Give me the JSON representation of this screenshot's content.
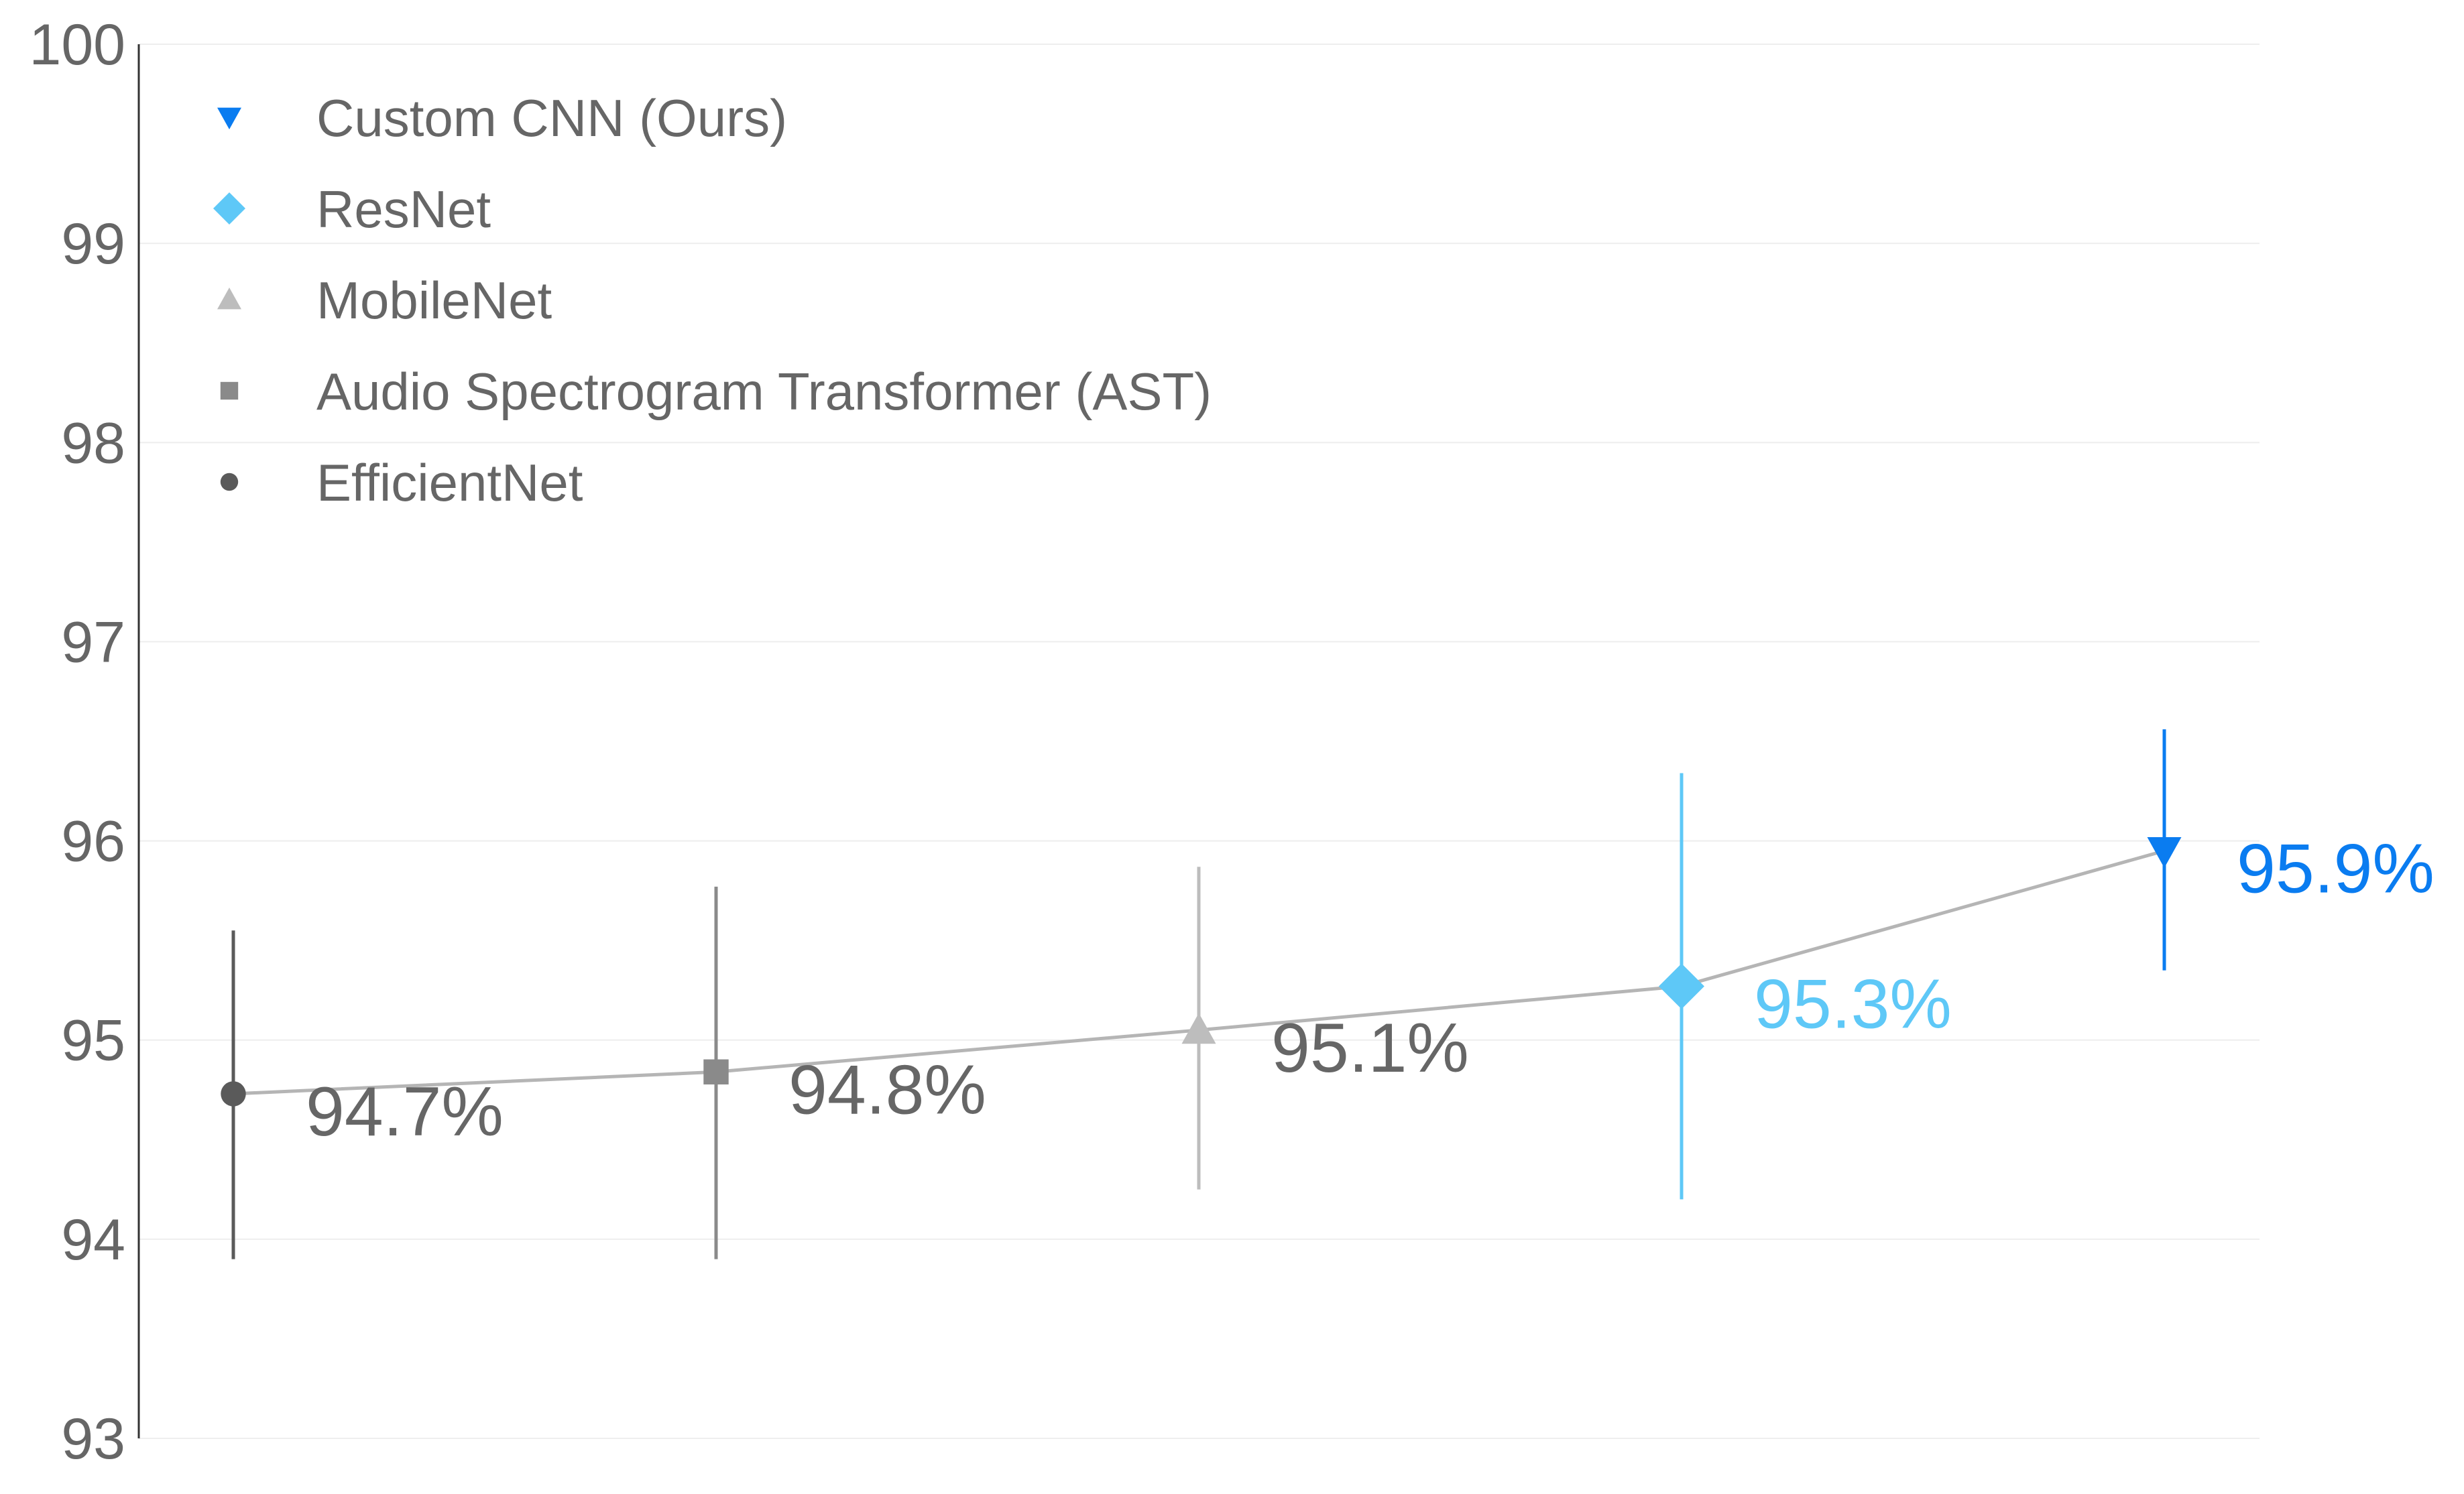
{
  "chart_data": {
    "type": "scatter",
    "title": "",
    "xlabel": "",
    "ylabel": "",
    "ylim": [
      93,
      100
    ],
    "yticks": [
      93,
      94,
      95,
      96,
      97,
      98,
      99,
      100
    ],
    "grid": true,
    "connecting_line_color": "#b5b5b5",
    "legend": {
      "placement": "top-left",
      "entries": [
        {
          "name": "Custom CNN (Ours)",
          "marker": "triangle-down",
          "color": "#0a7cf0"
        },
        {
          "name": "ResNet",
          "marker": "diamond",
          "color": "#5ec8f7"
        },
        {
          "name": "MobileNet",
          "marker": "triangle-up",
          "color": "#bdbdbd"
        },
        {
          "name": "Audio Spectrogram Transformer (AST)",
          "marker": "square",
          "color": "#8a8a8a"
        },
        {
          "name": "EfficientNet",
          "marker": "circle",
          "color": "#5a5a5a"
        }
      ]
    },
    "series": [
      {
        "name": "EfficientNet",
        "x": 1,
        "y": 94.73,
        "err_low": 93.9,
        "err_high": 95.55,
        "label": "94.7%",
        "marker": "circle",
        "color": "#5a5a5a",
        "label_color": "#666666"
      },
      {
        "name": "Audio Spectrogram Transformer (AST)",
        "x": 2,
        "y": 94.84,
        "err_low": 93.9,
        "err_high": 95.77,
        "label": "94.8%",
        "marker": "square",
        "color": "#8a8a8a",
        "label_color": "#666666"
      },
      {
        "name": "MobileNet",
        "x": 3,
        "y": 95.05,
        "err_low": 94.25,
        "err_high": 95.87,
        "label": "95.1%",
        "marker": "triangle-up",
        "color": "#bdbdbd",
        "label_color": "#666666"
      },
      {
        "name": "ResNet",
        "x": 4,
        "y": 95.27,
        "err_low": 94.2,
        "err_high": 96.34,
        "label": "95.3%",
        "marker": "diamond",
        "color": "#5ec8f7",
        "label_color": "#5ec8f7"
      },
      {
        "name": "Custom CNN (Ours)",
        "x": 5,
        "y": 95.95,
        "err_low": 95.35,
        "err_high": 96.56,
        "label": "95.9%",
        "marker": "triangle-down",
        "color": "#0a7cf0",
        "label_color": "#0a7cf0"
      }
    ]
  }
}
